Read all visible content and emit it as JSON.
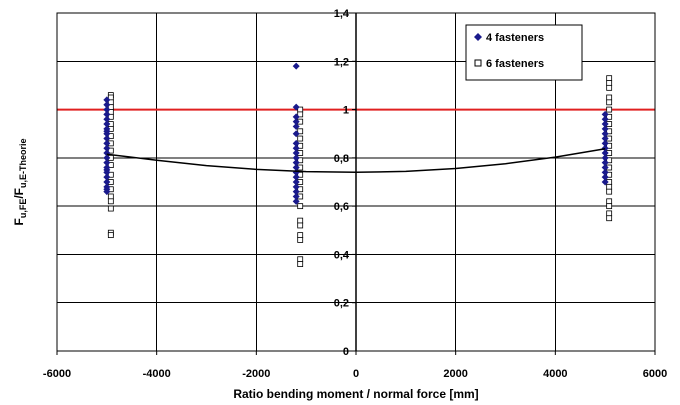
{
  "chart_data": {
    "type": "scatter",
    "xlabel": "Ratio bending moment / normal force [mm]",
    "ylabel": {
      "main": "F",
      "sub1": "u,FE",
      "mid": "/F",
      "sub2": "u,E-Theorie"
    },
    "xlim": [
      -6000,
      6000
    ],
    "ylim": [
      0,
      1.4
    ],
    "x_ticks": [
      -6000,
      -4000,
      -2000,
      0,
      2000,
      4000,
      6000
    ],
    "x_tick_labels": [
      "-6000",
      "-4000",
      "-2000",
      "0",
      "2000",
      "4000",
      "6000"
    ],
    "y_ticks": [
      0,
      0.2,
      0.4,
      0.6,
      0.8,
      1.0,
      1.2,
      1.4
    ],
    "y_tick_labels": [
      "0",
      "0,2",
      "0,4",
      "0,6",
      "0,8",
      "1",
      "1,2",
      "1,4"
    ],
    "grid": true,
    "legend_position": "top-right",
    "colors": {
      "four": "#1a1a8c",
      "six_edge": "#000000",
      "six_fill": "#ffffff",
      "reference": "#e02020",
      "trend": "#000000"
    },
    "series": [
      {
        "name": "4 fasteners",
        "marker": "diamond",
        "points": [
          [
            -5000,
            1.04
          ],
          [
            -5000,
            1.02
          ],
          [
            -5000,
            1.0
          ],
          [
            -5000,
            0.98
          ],
          [
            -5000,
            0.96
          ],
          [
            -5000,
            0.94
          ],
          [
            -5000,
            0.92
          ],
          [
            -5000,
            0.91
          ],
          [
            -5000,
            0.9
          ],
          [
            -5000,
            0.88
          ],
          [
            -5000,
            0.86
          ],
          [
            -5000,
            0.84
          ],
          [
            -5000,
            0.82
          ],
          [
            -5000,
            0.8
          ],
          [
            -5000,
            0.78
          ],
          [
            -5000,
            0.76
          ],
          [
            -5000,
            0.75
          ],
          [
            -5000,
            0.74
          ],
          [
            -5000,
            0.72
          ],
          [
            -5000,
            0.7
          ],
          [
            -5000,
            0.68
          ],
          [
            -5000,
            0.67
          ],
          [
            -5000,
            0.66
          ],
          [
            -1200,
            1.18
          ],
          [
            -1200,
            1.01
          ],
          [
            -1200,
            0.97
          ],
          [
            -1200,
            0.95
          ],
          [
            -1200,
            0.93
          ],
          [
            -1200,
            0.9
          ],
          [
            -1200,
            0.86
          ],
          [
            -1200,
            0.84
          ],
          [
            -1200,
            0.82
          ],
          [
            -1200,
            0.8
          ],
          [
            -1200,
            0.78
          ],
          [
            -1200,
            0.76
          ],
          [
            -1200,
            0.74
          ],
          [
            -1200,
            0.72
          ],
          [
            -1200,
            0.7
          ],
          [
            -1200,
            0.68
          ],
          [
            -1200,
            0.66
          ],
          [
            -1200,
            0.64
          ],
          [
            -1200,
            0.62
          ],
          [
            5000,
            0.98
          ],
          [
            5000,
            0.96
          ],
          [
            5000,
            0.94
          ],
          [
            5000,
            0.92
          ],
          [
            5000,
            0.9
          ],
          [
            5000,
            0.88
          ],
          [
            5000,
            0.86
          ],
          [
            5000,
            0.84
          ],
          [
            5000,
            0.82
          ],
          [
            5000,
            0.8
          ],
          [
            5000,
            0.78
          ],
          [
            5000,
            0.76
          ],
          [
            5000,
            0.74
          ],
          [
            5000,
            0.72
          ],
          [
            5000,
            0.7
          ]
        ]
      },
      {
        "name": "6 fasteners",
        "marker": "square",
        "points": [
          [
            -5000,
            1.06
          ],
          [
            -5000,
            1.05
          ],
          [
            -5000,
            1.03
          ],
          [
            -5000,
            1.01
          ],
          [
            -5000,
            0.99
          ],
          [
            -5000,
            0.97
          ],
          [
            -5000,
            0.94
          ],
          [
            -5000,
            0.92
          ],
          [
            -5000,
            0.89
          ],
          [
            -5000,
            0.86
          ],
          [
            -5000,
            0.83
          ],
          [
            -5000,
            0.8
          ],
          [
            -5000,
            0.77
          ],
          [
            -5000,
            0.73
          ],
          [
            -5000,
            0.7
          ],
          [
            -5000,
            0.67
          ],
          [
            -5000,
            0.64
          ],
          [
            -5000,
            0.62
          ],
          [
            -5000,
            0.59
          ],
          [
            -5000,
            0.49
          ],
          [
            -5000,
            0.48
          ],
          [
            -1200,
            1.0
          ],
          [
            -1200,
            0.98
          ],
          [
            -1200,
            0.95
          ],
          [
            -1200,
            0.91
          ],
          [
            -1200,
            0.88
          ],
          [
            -1200,
            0.85
          ],
          [
            -1200,
            0.82
          ],
          [
            -1200,
            0.79
          ],
          [
            -1200,
            0.76
          ],
          [
            -1200,
            0.73
          ],
          [
            -1200,
            0.7
          ],
          [
            -1200,
            0.67
          ],
          [
            -1200,
            0.64
          ],
          [
            -1200,
            0.6
          ],
          [
            -1200,
            0.54
          ],
          [
            -1200,
            0.52
          ],
          [
            -1200,
            0.48
          ],
          [
            -1200,
            0.46
          ],
          [
            -1200,
            0.38
          ],
          [
            -1200,
            0.36
          ],
          [
            5000,
            1.13
          ],
          [
            5000,
            1.11
          ],
          [
            5000,
            1.09
          ],
          [
            5000,
            1.05
          ],
          [
            5000,
            1.03
          ],
          [
            5000,
            1.0
          ],
          [
            5000,
            0.97
          ],
          [
            5000,
            0.94
          ],
          [
            5000,
            0.91
          ],
          [
            5000,
            0.88
          ],
          [
            5000,
            0.85
          ],
          [
            5000,
            0.82
          ],
          [
            5000,
            0.79
          ],
          [
            5000,
            0.76
          ],
          [
            5000,
            0.73
          ],
          [
            5000,
            0.7
          ],
          [
            5000,
            0.68
          ],
          [
            5000,
            0.66
          ],
          [
            5000,
            0.62
          ],
          [
            5000,
            0.6
          ],
          [
            5000,
            0.57
          ],
          [
            5000,
            0.55
          ]
        ]
      }
    ],
    "reference_line": {
      "y": 1.0
    },
    "trend_line": {
      "points": [
        [
          -5000,
          0.815
        ],
        [
          -4000,
          0.79
        ],
        [
          -3000,
          0.768
        ],
        [
          -2000,
          0.752
        ],
        [
          -1000,
          0.743
        ],
        [
          0,
          0.74
        ],
        [
          1000,
          0.744
        ],
        [
          2000,
          0.756
        ],
        [
          3000,
          0.776
        ],
        [
          4000,
          0.803
        ],
        [
          5000,
          0.838
        ]
      ]
    }
  }
}
